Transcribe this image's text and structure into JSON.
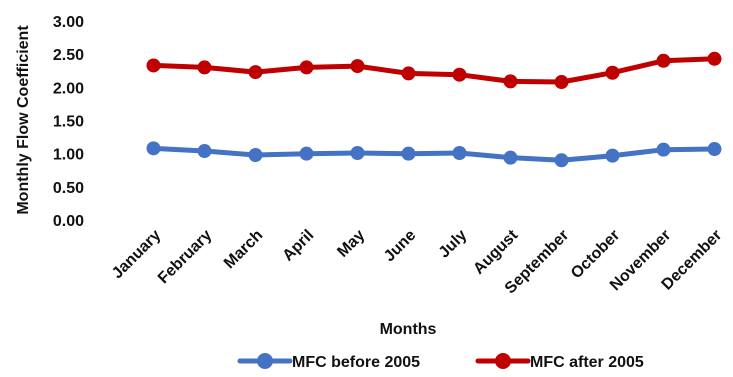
{
  "chart_data": {
    "type": "line",
    "title": "",
    "xlabel": "Months",
    "ylabel": "Monthly Flow Coefficient",
    "categories": [
      "January",
      "February",
      "March",
      "April",
      "May",
      "June",
      "July",
      "August",
      "September",
      "October",
      "November",
      "December"
    ],
    "ylim": [
      0,
      3
    ],
    "y_ticks": [
      "0.00",
      "0.50",
      "1.00",
      "1.50",
      "2.00",
      "2.50",
      "3.00"
    ],
    "grid": false,
    "legend_position": "bottom",
    "series": [
      {
        "name": "MFC before 2005",
        "color": "#4472C4",
        "values": [
          1.08,
          1.04,
          0.98,
          1.0,
          1.01,
          1.0,
          1.01,
          0.94,
          0.9,
          0.97,
          1.06,
          1.07
        ]
      },
      {
        "name": "MFC after 2005",
        "color": "#C00000",
        "values": [
          2.33,
          2.3,
          2.23,
          2.3,
          2.32,
          2.21,
          2.19,
          2.09,
          2.08,
          2.22,
          2.4,
          2.43
        ]
      }
    ]
  }
}
